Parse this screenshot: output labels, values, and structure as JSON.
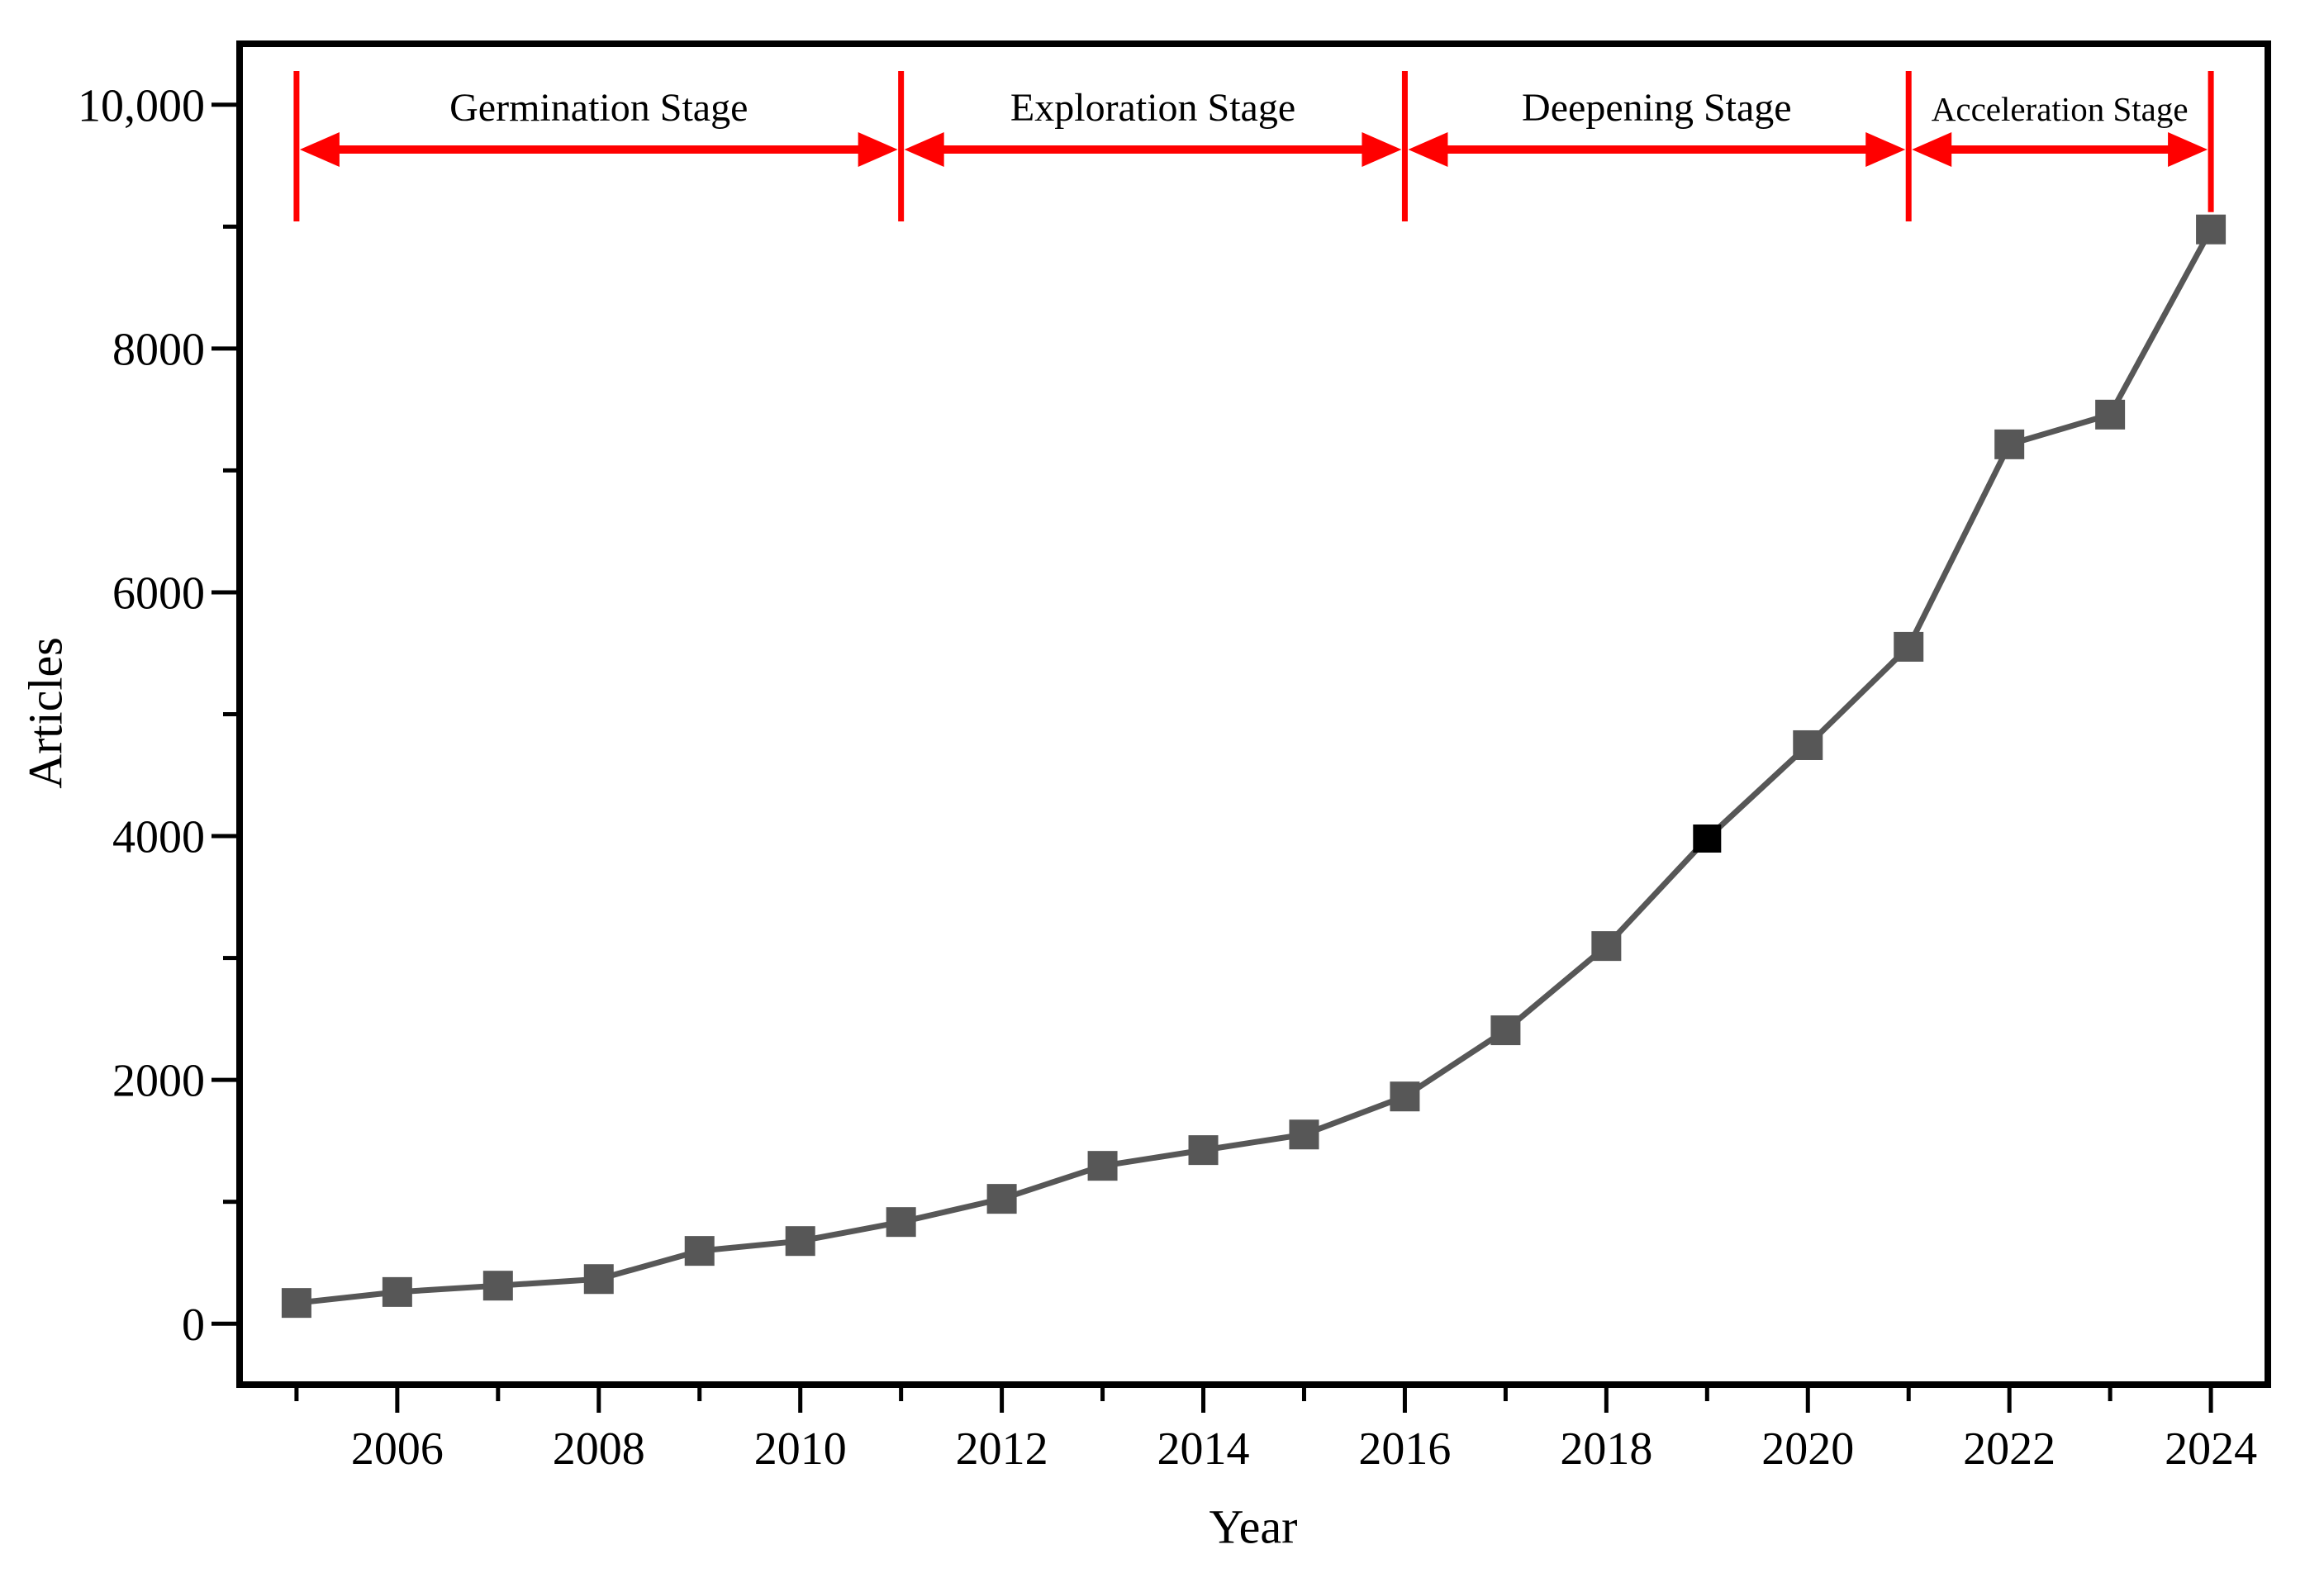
{
  "chart_data": {
    "type": "line",
    "title": "",
    "xlabel": "Year",
    "ylabel": "Articles",
    "x": [
      2005,
      2006,
      2007,
      2008,
      2009,
      2010,
      2011,
      2012,
      2013,
      2014,
      2015,
      2016,
      2017,
      2018,
      2019,
      2020,
      2021,
      2022,
      2023,
      2024
    ],
    "series": [
      {
        "name": "Articles",
        "values": [
          170,
          260,
          312,
          366,
          597,
          678,
          834,
          1024,
          1295,
          1424,
          1552,
          1864,
          2407,
          3098,
          3980,
          4746,
          5553,
          7214,
          7458,
          8977
        ]
      }
    ],
    "highlight_point": {
      "year": 2019,
      "color": "#000000"
    },
    "xlim": [
      2004.435,
      2024.565
    ],
    "ylim": [
      -500,
      10500
    ],
    "x_major_ticks": [
      {
        "value": 2006,
        "label": "2006"
      },
      {
        "value": 2008,
        "label": "2008"
      },
      {
        "value": 2010,
        "label": "2010"
      },
      {
        "value": 2012,
        "label": "2012"
      },
      {
        "value": 2014,
        "label": "2014"
      },
      {
        "value": 2016,
        "label": "2016"
      },
      {
        "value": 2018,
        "label": "2018"
      },
      {
        "value": 2020,
        "label": "2020"
      },
      {
        "value": 2022,
        "label": "2022"
      },
      {
        "value": 2024,
        "label": "2024"
      }
    ],
    "x_minor_ticks": [
      2005,
      2007,
      2009,
      2011,
      2013,
      2015,
      2017,
      2019,
      2021,
      2023
    ],
    "y_major_ticks": [
      {
        "value": 0,
        "label": "0"
      },
      {
        "value": 2000,
        "label": "2000"
      },
      {
        "value": 4000,
        "label": "4000"
      },
      {
        "value": 6000,
        "label": "6000"
      },
      {
        "value": 8000,
        "label": "8000"
      },
      {
        "value": 10000,
        "label": "10,000"
      }
    ],
    "y_minor_ticks": [
      1000,
      3000,
      5000,
      7000,
      9000
    ],
    "grid": false,
    "legend": false,
    "line_color": "#575757",
    "marker_color": "#575757",
    "axis_color": "#000000",
    "stages": {
      "color": "#ff0000",
      "items": [
        {
          "label": "Germination Stage",
          "start": 2005,
          "end": 2011
        },
        {
          "label": "Exploration Stage",
          "start": 2011,
          "end": 2016
        },
        {
          "label": "Deepening Stage",
          "start": 2016,
          "end": 2021
        },
        {
          "label": "Acceleration Stage",
          "start": 2021,
          "end": 2024
        }
      ]
    }
  }
}
